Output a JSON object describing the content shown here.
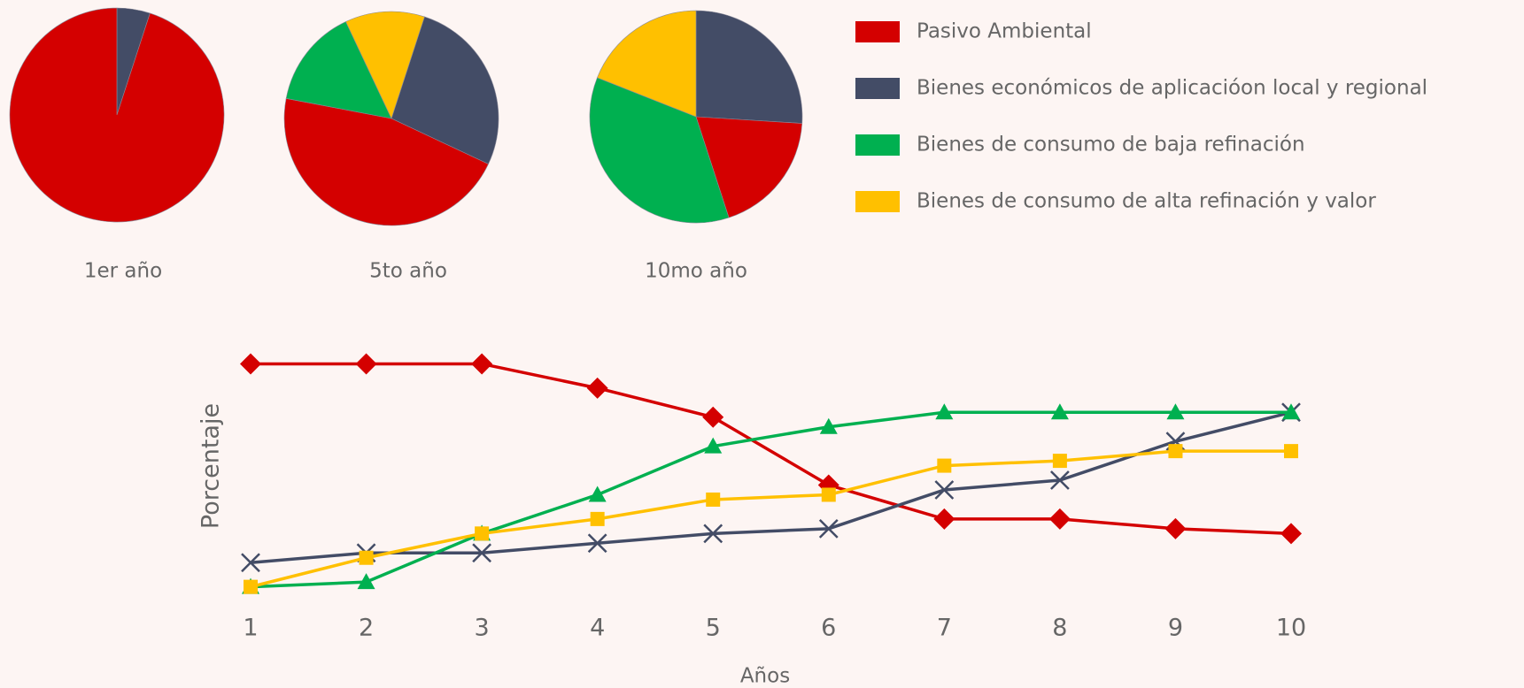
{
  "chart_data": [
    {
      "type": "pie",
      "title": "1er año",
      "values": [
        5,
        95
      ],
      "colors": [
        "#434c66",
        "#d40000"
      ],
      "startangle": 0
    },
    {
      "type": "pie",
      "title": "5to año",
      "values": [
        27,
        46,
        15,
        12
      ],
      "colors": [
        "#434c66",
        "#d40000",
        "#00b050",
        "#ffc000"
      ],
      "startangle": 18
    },
    {
      "type": "pie",
      "title": "10mo año",
      "values": [
        26,
        19,
        36,
        19
      ],
      "colors": [
        "#434c66",
        "#d40000",
        "#00b050",
        "#ffc000"
      ],
      "startangle": 0
    },
    {
      "type": "line",
      "xlabel": "Años",
      "ylabel": "Porcentaje",
      "categories": [
        "1",
        "2",
        "3",
        "4",
        "5",
        "6",
        "7",
        "8",
        "9",
        "10"
      ],
      "ylim": [
        0,
        56
      ],
      "series": [
        {
          "name": "Pasivo Ambiental",
          "color": "#d40000",
          "marker": "diamond",
          "values": [
            53,
            53,
            53,
            48,
            42,
            28,
            21,
            21,
            19,
            18
          ]
        },
        {
          "name": "Bienes económicos de aplicacióon local y regional",
          "color": "#434c66",
          "marker": "x",
          "values": [
            12,
            14,
            14,
            16,
            18,
            19,
            27,
            29,
            37,
            43
          ]
        },
        {
          "name": "Bienes de consumo de baja refinación",
          "color": "#00b050",
          "marker": "triangle",
          "values": [
            7,
            8,
            18,
            26,
            36,
            40,
            43,
            43,
            43,
            43
          ]
        },
        {
          "name": "Bienes de consumo de alta refinación y valor",
          "color": "#ffc000",
          "marker": "square",
          "values": [
            7,
            13,
            18,
            21,
            25,
            26,
            32,
            33,
            35,
            35
          ]
        }
      ]
    }
  ]
}
